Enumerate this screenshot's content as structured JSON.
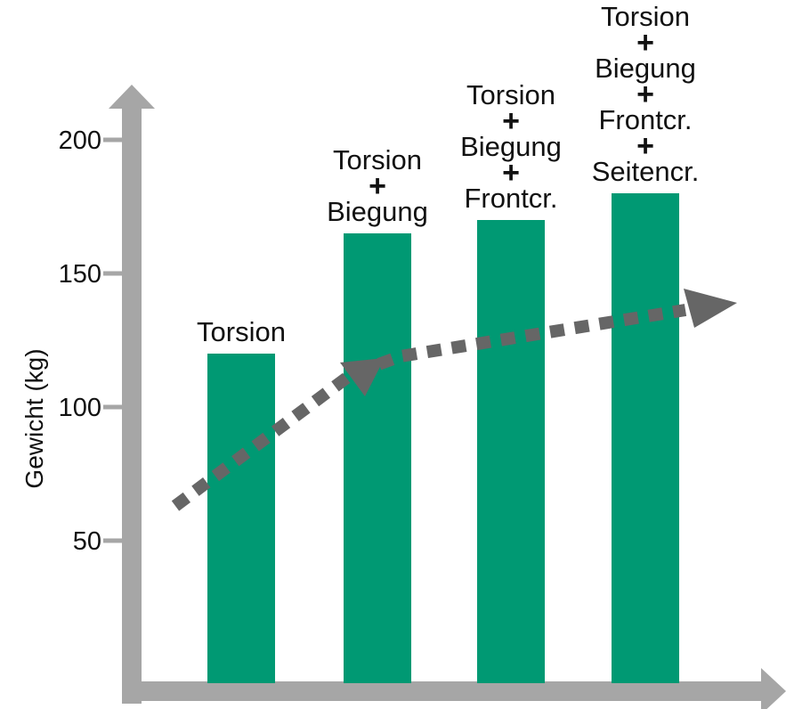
{
  "chart_data": {
    "type": "bar",
    "ylabel": "Gewicht (kg)",
    "xlabel": "",
    "yticks": [
      50,
      100,
      150,
      200
    ],
    "ylim": [
      0,
      220
    ],
    "categories": [
      [
        "Torsion"
      ],
      [
        "Torsion",
        "Biegung"
      ],
      [
        "Torsion",
        "Biegung",
        "Frontcr."
      ],
      [
        "Torsion",
        "Biegung",
        "Frontcr.",
        "Seitencr."
      ]
    ],
    "values": [
      120,
      165,
      170,
      180
    ],
    "plus_symbol": "+",
    "grid": false,
    "legend": "none",
    "trend_arrow": {
      "style": "dashed",
      "color": "#666666",
      "direction": "increasing"
    }
  },
  "colors": {
    "bar": "#009973",
    "axis": "#a6a6a6",
    "arrow": "#666666",
    "text": "#111111"
  }
}
